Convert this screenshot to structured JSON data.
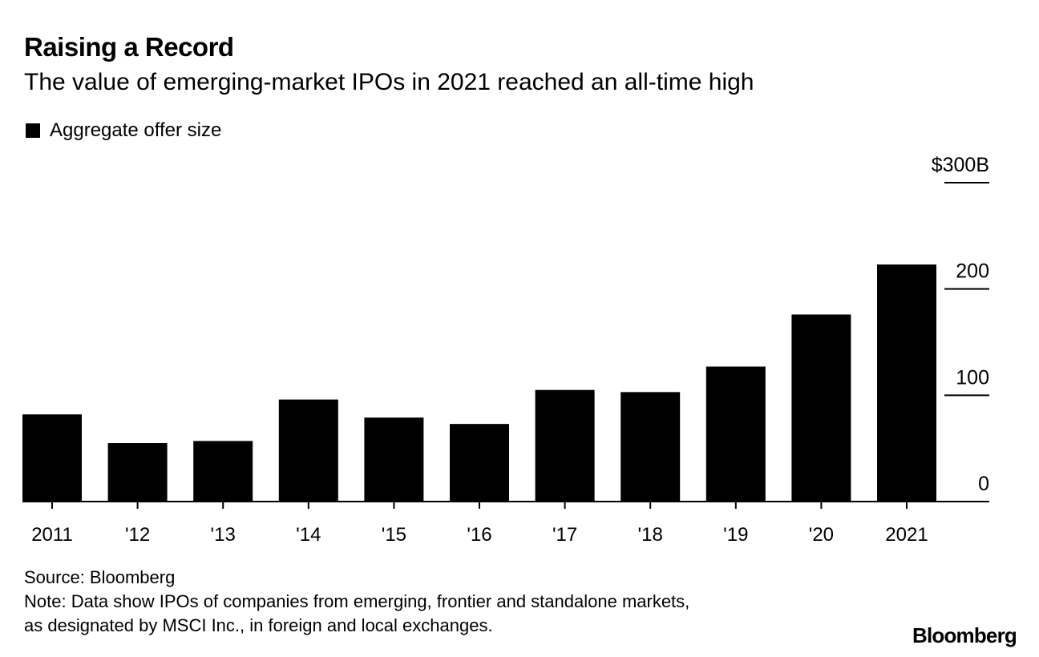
{
  "title": "Raising a Record",
  "subtitle": "The value of emerging-market IPOs in 2021 reached an all-time high",
  "legend": {
    "label": "Aggregate offer size",
    "color": "#000000"
  },
  "footer": {
    "source": "Source: Bloomberg",
    "note_line1": "Note: Data show IPOs of companies from emerging, frontier and standalone markets,",
    "note_line2": "as designated by MSCI Inc., in foreign and local exchanges."
  },
  "logo": "Bloomberg",
  "chart_data": {
    "type": "bar",
    "categories": [
      "2011",
      "'12",
      "'13",
      "'14",
      "'15",
      "'16",
      "'17",
      "'18",
      "'19",
      "'20",
      "2021"
    ],
    "series": [
      {
        "name": "Aggregate offer size",
        "values": [
          82,
          55,
          57,
          96,
          79,
          73,
          105,
          103,
          127,
          176,
          223
        ]
      }
    ],
    "ylim": [
      0,
      300
    ],
    "yticks": [
      {
        "value": 0,
        "label": "0"
      },
      {
        "value": 100,
        "label": "100"
      },
      {
        "value": 200,
        "label": "200"
      },
      {
        "value": 300,
        "label": "$300B"
      }
    ],
    "ytick_side": "right",
    "grid": false,
    "legend_position": "top-left",
    "bar_color": "#000000"
  }
}
